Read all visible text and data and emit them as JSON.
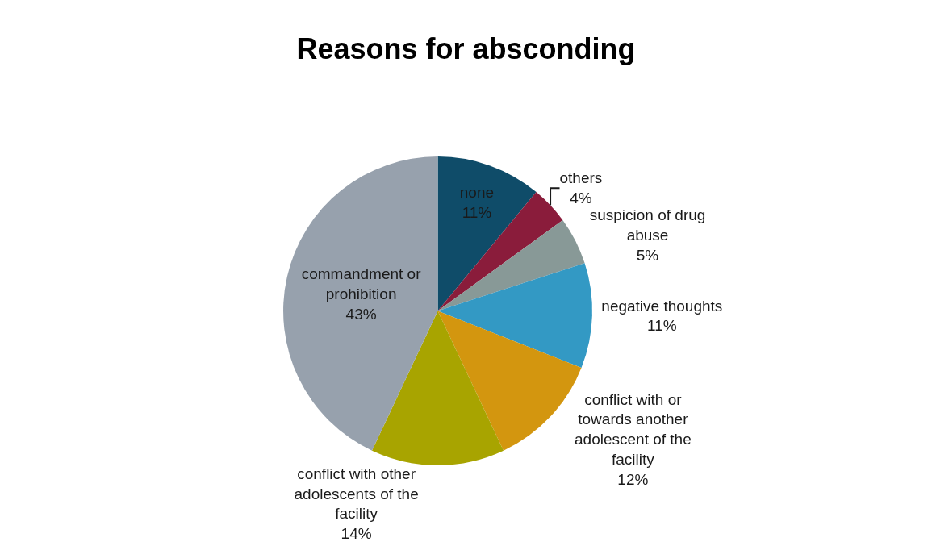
{
  "chart_data": {
    "type": "pie",
    "title": "Reasons for absconding",
    "categories": [
      "none",
      "others",
      "suspicion of drug abuse",
      "negative thoughts",
      "conflict with or towards another adolescent of the facility",
      "conflict with other adolescents of the facility",
      "commandment or prohibition"
    ],
    "values": [
      11,
      4,
      5,
      11,
      12,
      14,
      43
    ],
    "value_labels": [
      "11%",
      "4%",
      "5%",
      "11%",
      "12%",
      "14%",
      "43%"
    ],
    "colors": [
      "#0f4c69",
      "#8a1c3b",
      "#889997",
      "#3399c4",
      "#d3960f",
      "#a8a400",
      "#97a1ad"
    ],
    "legend": false
  }
}
